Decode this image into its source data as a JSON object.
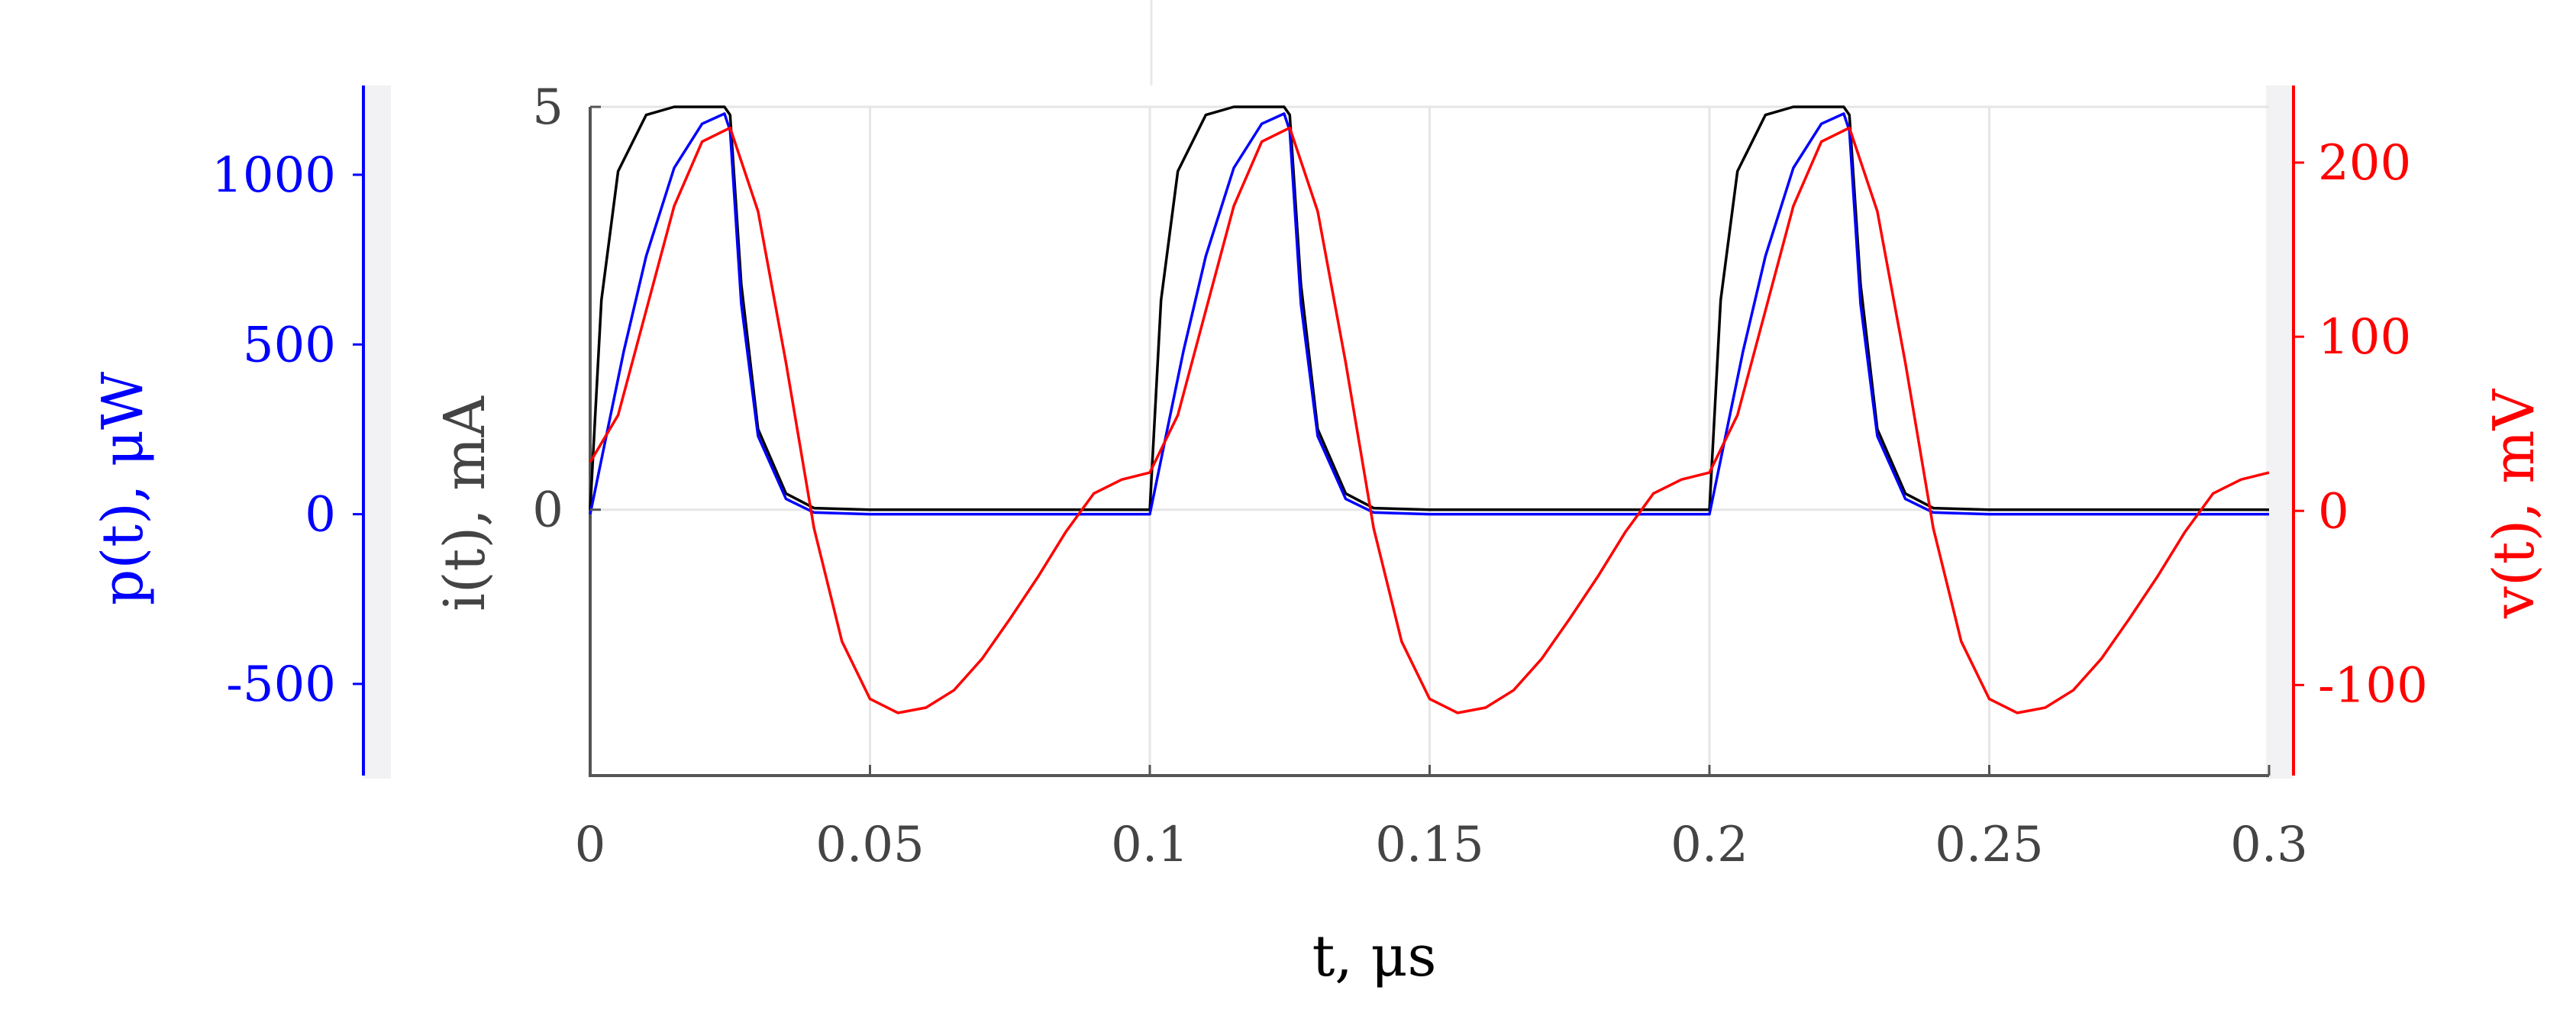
{
  "chart_data": {
    "type": "line",
    "xlabel": "t, μs",
    "xlim": [
      0,
      0.3
    ],
    "x_ticks": [
      0,
      0.05,
      0.1,
      0.15,
      0.2,
      0.25,
      0.3
    ],
    "x_tick_labels": [
      "0",
      "0.05",
      "0.1",
      "0.15",
      "0.2",
      "0.25",
      "0.3"
    ],
    "grid": true,
    "axes": {
      "current": {
        "label": "i(t), mA",
        "ylim": [
          -3.3,
          5
        ],
        "ticks": [
          0,
          5
        ],
        "tick_labels": [
          "0",
          "5"
        ],
        "color": "#000000"
      },
      "power": {
        "label": "p(t), μW",
        "ylim": [
          -770,
          1200
        ],
        "ticks": [
          -500,
          0,
          500,
          1000
        ],
        "tick_labels": [
          "-500",
          "0",
          "500",
          "1000"
        ],
        "color": "#0000ff"
      },
      "voltage": {
        "label": "v(t), mV",
        "ylim": [
          -152,
          232
        ],
        "ticks": [
          -100,
          0,
          100,
          200
        ],
        "tick_labels": [
          "-100",
          "0",
          "100",
          "200"
        ],
        "color": "#ff0000"
      }
    },
    "series": [
      {
        "axis": "current",
        "color": "#000000",
        "x": [
          0,
          0.002,
          0.005,
          0.01,
          0.015,
          0.02,
          0.024,
          0.025,
          0.027,
          0.03,
          0.035,
          0.04,
          0.05,
          0.1,
          0.102,
          0.105,
          0.11,
          0.115,
          0.12,
          0.124,
          0.125,
          0.127,
          0.13,
          0.135,
          0.14,
          0.15,
          0.2,
          0.202,
          0.205,
          0.21,
          0.215,
          0.22,
          0.224,
          0.225,
          0.227,
          0.23,
          0.235,
          0.24,
          0.25,
          0.3
        ],
        "values": [
          0,
          2.6,
          4.2,
          4.9,
          5,
          5,
          5,
          4.9,
          2.8,
          1.0,
          0.2,
          0.02,
          0,
          0,
          2.6,
          4.2,
          4.9,
          5,
          5,
          5,
          4.9,
          2.8,
          1.0,
          0.2,
          0.02,
          0,
          0,
          2.6,
          4.2,
          4.9,
          5,
          5,
          5,
          4.9,
          2.8,
          1.0,
          0.2,
          0.02,
          0,
          0
        ]
      },
      {
        "axis": "power",
        "color": "#0000ff",
        "x": [
          0,
          0.003,
          0.006,
          0.01,
          0.015,
          0.02,
          0.024,
          0.025,
          0.027,
          0.03,
          0.035,
          0.04,
          0.05,
          0.1,
          0.103,
          0.106,
          0.11,
          0.115,
          0.12,
          0.124,
          0.125,
          0.127,
          0.13,
          0.135,
          0.14,
          0.15,
          0.2,
          0.203,
          0.206,
          0.21,
          0.215,
          0.22,
          0.224,
          0.225,
          0.227,
          0.23,
          0.235,
          0.24,
          0.25,
          0.3
        ],
        "values": [
          0,
          240,
          480,
          760,
          1020,
          1150,
          1180,
          1130,
          620,
          230,
          45,
          5,
          0,
          0,
          240,
          480,
          760,
          1020,
          1150,
          1180,
          1130,
          620,
          230,
          45,
          5,
          0,
          0,
          240,
          480,
          760,
          1020,
          1150,
          1180,
          1130,
          620,
          230,
          45,
          5,
          0,
          0
        ]
      },
      {
        "axis": "voltage",
        "color": "#ff0000",
        "x": [
          0,
          0.005,
          0.01,
          0.015,
          0.02,
          0.025,
          0.03,
          0.035,
          0.04,
          0.045,
          0.05,
          0.055,
          0.06,
          0.065,
          0.07,
          0.075,
          0.08,
          0.085,
          0.09,
          0.095,
          0.1,
          0.105,
          0.11,
          0.115,
          0.12,
          0.125,
          0.13,
          0.135,
          0.14,
          0.145,
          0.15,
          0.155,
          0.16,
          0.165,
          0.17,
          0.175,
          0.18,
          0.185,
          0.19,
          0.195,
          0.2,
          0.205,
          0.21,
          0.215,
          0.22,
          0.225,
          0.23,
          0.235,
          0.24,
          0.245,
          0.25,
          0.255,
          0.26,
          0.265,
          0.27,
          0.275,
          0.28,
          0.285,
          0.29,
          0.295,
          0.3
        ],
        "values": [
          28,
          55,
          115,
          175,
          212,
          220,
          172,
          85,
          -10,
          -75,
          -108,
          -116,
          -113,
          -103,
          -85,
          -62,
          -38,
          -12,
          10,
          18,
          22,
          55,
          115,
          175,
          212,
          220,
          172,
          85,
          -10,
          -75,
          -108,
          -116,
          -113,
          -103,
          -85,
          -62,
          -38,
          -12,
          10,
          18,
          22,
          55,
          115,
          175,
          212,
          220,
          172,
          85,
          -10,
          -75,
          -108,
          -116,
          -113,
          -103,
          -85,
          -62,
          -38,
          -12,
          10,
          18,
          22
        ]
      }
    ]
  }
}
